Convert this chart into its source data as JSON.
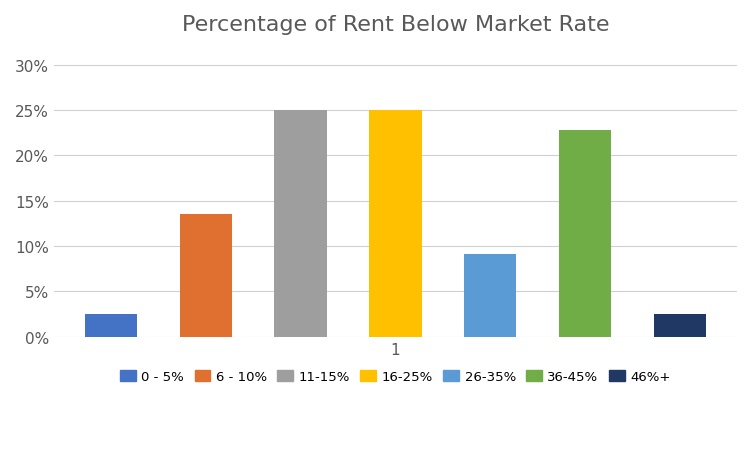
{
  "title": "Percentage of Rent Below Market Rate",
  "categories": [
    "0 - 5%",
    "6 - 10%",
    "11-15%",
    "16-25%",
    "26-35%",
    "36-45%",
    "46%+"
  ],
  "values": [
    0.025,
    0.136,
    0.25,
    0.25,
    0.091,
    0.228,
    0.025
  ],
  "bar_colors": [
    "#4472c4",
    "#e07030",
    "#9e9e9e",
    "#ffc000",
    "#5b9bd5",
    "#70ad47",
    "#203864"
  ],
  "xlabel": "1",
  "ylim": [
    0,
    0.32
  ],
  "yticks": [
    0.0,
    0.05,
    0.1,
    0.15,
    0.2,
    0.25,
    0.3
  ],
  "ytick_labels": [
    "0%",
    "5%",
    "10%",
    "15%",
    "20%",
    "25%",
    "30%"
  ],
  "background_color": "#ffffff",
  "title_fontsize": 16,
  "title_color": "#595959",
  "legend_labels": [
    "0 - 5%",
    "6 - 10%",
    "11-15%",
    "16-25%",
    "26-35%",
    "36-45%",
    "46%+"
  ]
}
